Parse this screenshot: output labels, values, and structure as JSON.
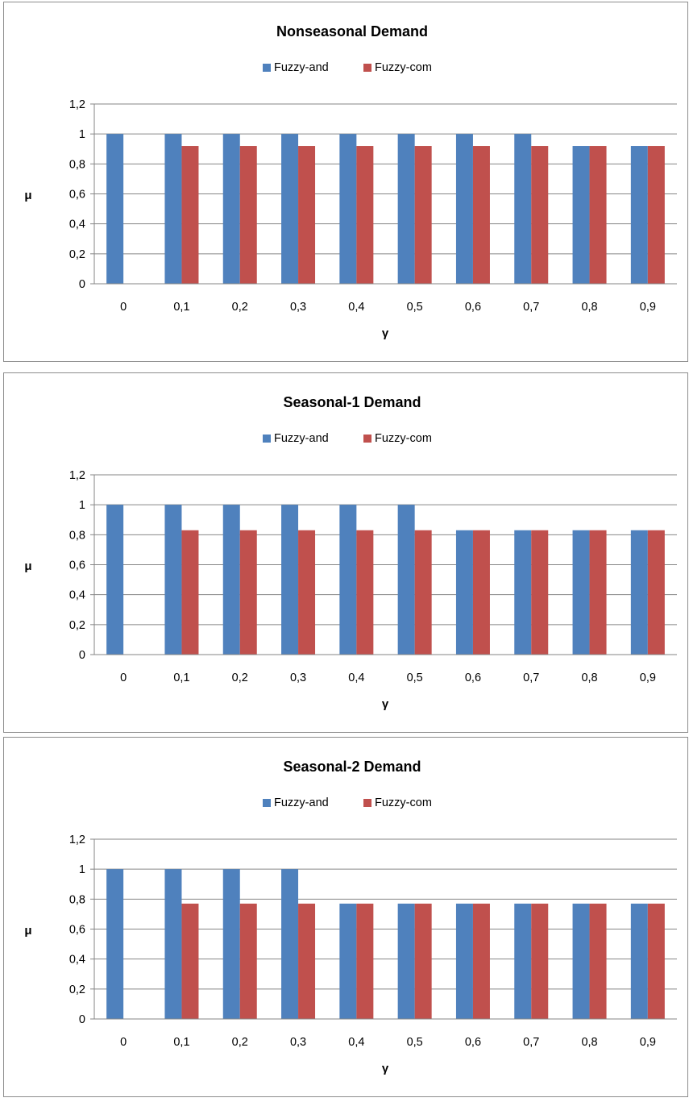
{
  "chart_data": [
    {
      "type": "bar",
      "title": "Nonseasonal Demand",
      "xlabel": "γ",
      "ylabel": "μ",
      "ylim": [
        0,
        1.2
      ],
      "yticks": [
        "0",
        "0,2",
        "0,4",
        "0,6",
        "0,8",
        "1",
        "1,2"
      ],
      "categories": [
        "0",
        "0,1",
        "0,2",
        "0,3",
        "0,4",
        "0,5",
        "0,6",
        "0,7",
        "0,8",
        "0,9"
      ],
      "series": [
        {
          "name": "Fuzzy-and",
          "color": "#4F81BD",
          "values": [
            1,
            1,
            1,
            1,
            1,
            1,
            1,
            1,
            0.92,
            0.92
          ]
        },
        {
          "name": "Fuzzy-com",
          "color": "#C0504D",
          "values": [
            0,
            0.92,
            0.92,
            0.92,
            0.92,
            0.92,
            0.92,
            0.92,
            0.92,
            0.92
          ]
        }
      ],
      "legend": "top-center",
      "grid": true
    },
    {
      "type": "bar",
      "title": "Seasonal-1 Demand",
      "xlabel": "γ",
      "ylabel": "μ",
      "ylim": [
        0,
        1.2
      ],
      "yticks": [
        "0",
        "0,2",
        "0,4",
        "0,6",
        "0,8",
        "1",
        "1,2"
      ],
      "categories": [
        "0",
        "0,1",
        "0,2",
        "0,3",
        "0,4",
        "0,5",
        "0,6",
        "0,7",
        "0,8",
        "0,9"
      ],
      "series": [
        {
          "name": "Fuzzy-and",
          "color": "#4F81BD",
          "values": [
            1,
            1,
            1,
            1,
            1,
            1,
            0.83,
            0.83,
            0.83,
            0.83
          ]
        },
        {
          "name": "Fuzzy-com",
          "color": "#C0504D",
          "values": [
            0,
            0.83,
            0.83,
            0.83,
            0.83,
            0.83,
            0.83,
            0.83,
            0.83,
            0.83
          ]
        }
      ],
      "legend": "top-center",
      "grid": true
    },
    {
      "type": "bar",
      "title": "Seasonal-2 Demand",
      "xlabel": "γ",
      "ylabel": "μ",
      "ylim": [
        0,
        1.2
      ],
      "yticks": [
        "0",
        "0,2",
        "0,4",
        "0,6",
        "0,8",
        "1",
        "1,2"
      ],
      "categories": [
        "0",
        "0,1",
        "0,2",
        "0,3",
        "0,4",
        "0,5",
        "0,6",
        "0,7",
        "0,8",
        "0,9"
      ],
      "series": [
        {
          "name": "Fuzzy-and",
          "color": "#4F81BD",
          "values": [
            1,
            1,
            1,
            1,
            0.77,
            0.77,
            0.77,
            0.77,
            0.77,
            0.77
          ]
        },
        {
          "name": "Fuzzy-com",
          "color": "#C0504D",
          "values": [
            0,
            0.77,
            0.77,
            0.77,
            0.77,
            0.77,
            0.77,
            0.77,
            0.77,
            0.77
          ]
        }
      ],
      "legend": "top-center",
      "grid": true
    }
  ]
}
